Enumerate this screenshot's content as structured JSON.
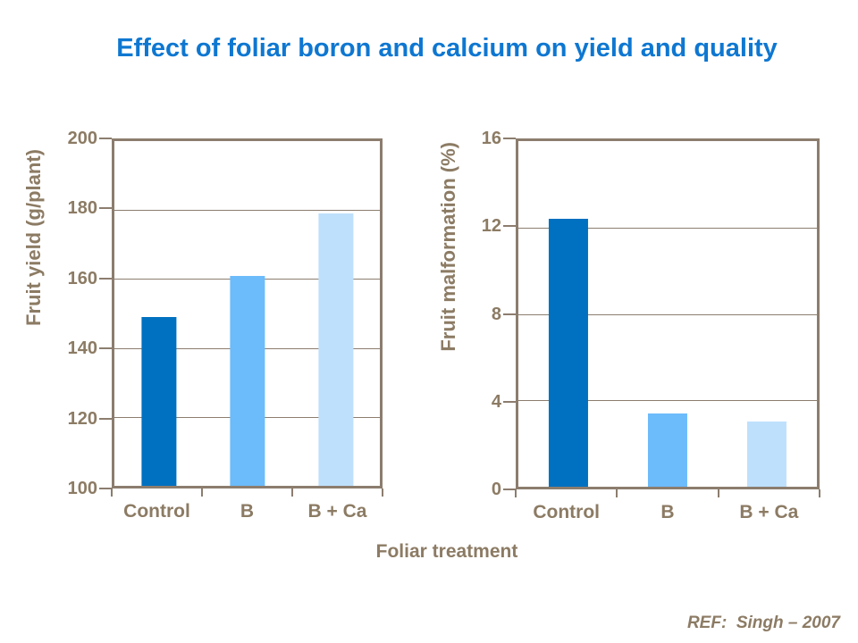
{
  "title": "Effect of foliar boron and calcium on yield and quality",
  "xlabel": "Foliar treatment",
  "reference": "REF:  Singh – 2007",
  "colors": {
    "title": "#0E77D1",
    "axis_text": "#8C7B64",
    "axis_line": "#8C7D6E",
    "bars": [
      "#0070C0",
      "#6CBBFA",
      "#BEE0FC"
    ]
  },
  "chart_data": [
    {
      "type": "bar",
      "ylabel": "Fruit yield (g/plant)",
      "categories": [
        "Control",
        "B",
        "B + Ca"
      ],
      "values": [
        149,
        161,
        179
      ],
      "ylim": [
        100,
        200
      ],
      "yticks": [
        100,
        120,
        140,
        160,
        180,
        200
      ],
      "grid": true,
      "legend": false
    },
    {
      "type": "bar",
      "ylabel": "Fruit malformation (%)",
      "categories": [
        "Control",
        "B",
        "B + Ca"
      ],
      "values": [
        12.4,
        3.4,
        3.0
      ],
      "ylim": [
        0,
        16
      ],
      "yticks": [
        0,
        4,
        8,
        12,
        16
      ],
      "grid": true,
      "legend": false
    }
  ]
}
